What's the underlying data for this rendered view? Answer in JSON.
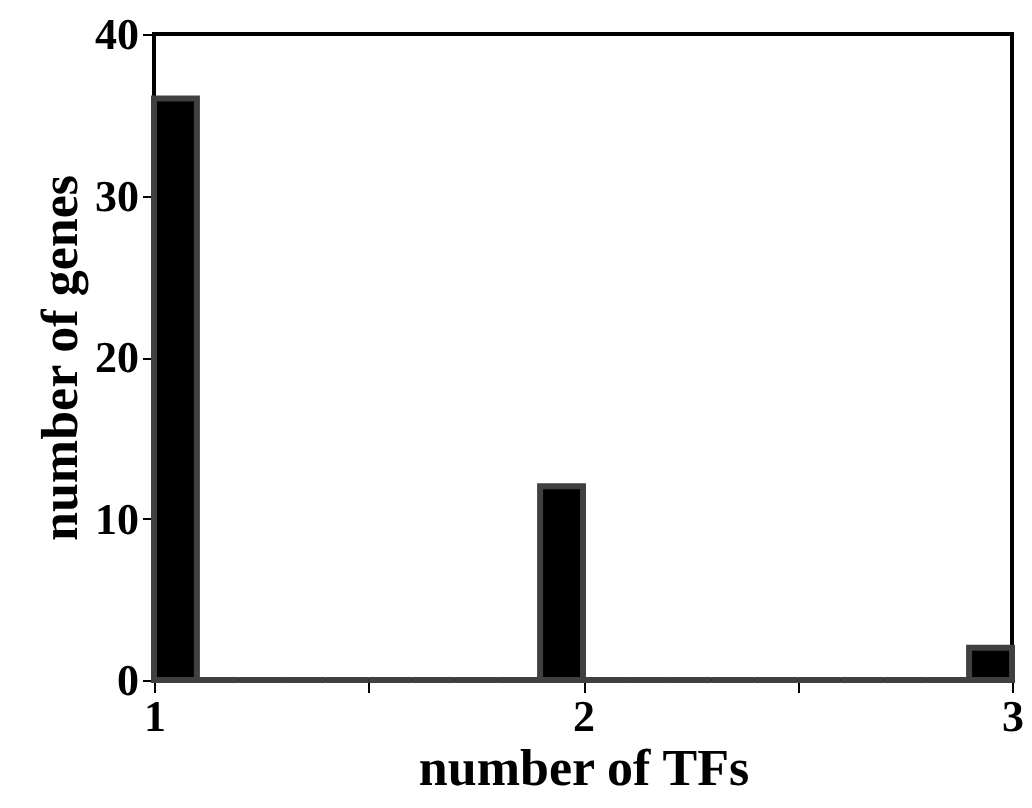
{
  "chart_data": {
    "type": "histogram",
    "xlabel": "number of TFs",
    "ylabel": "number of genes",
    "bins": [
      1.0,
      1.1,
      1.2,
      1.3,
      1.4,
      1.5,
      1.6,
      1.7,
      1.8,
      1.9,
      2.0,
      2.1,
      2.2,
      2.3,
      2.4,
      2.5,
      2.6,
      2.7,
      2.8,
      2.9,
      3.0
    ],
    "values": [
      36,
      0,
      0,
      0,
      0,
      0,
      0,
      0,
      0,
      12,
      0,
      0,
      0,
      0,
      0,
      0,
      0,
      0,
      0,
      2
    ],
    "color": "#000000",
    "xlim": [
      1,
      3
    ],
    "xticks": [
      1,
      {
        "value": 1.5,
        "label": null
      },
      2,
      {
        "value": 2.5,
        "label": null
      },
      3
    ],
    "ylim": [
      0,
      40
    ],
    "yticks": [
      0,
      10,
      20,
      30,
      40
    ],
    "grid": false
  }
}
